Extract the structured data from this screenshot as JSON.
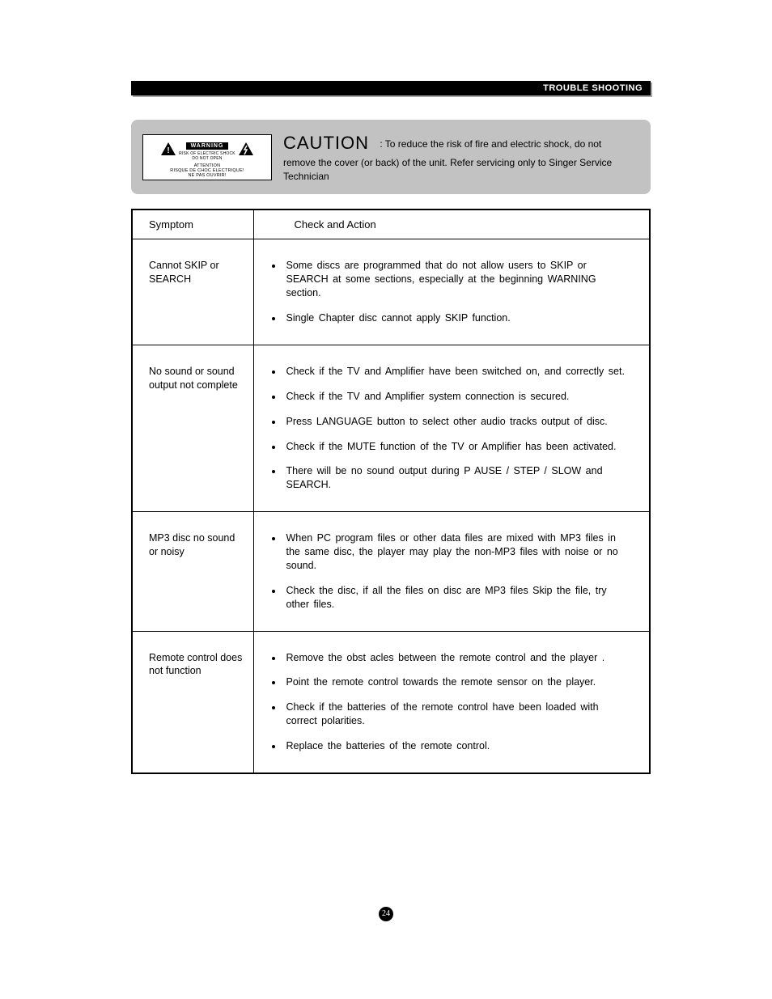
{
  "header": {
    "title": "TROUBLE SHOOTING"
  },
  "caution": {
    "title": "CAUTION",
    "body": ": To reduce the  risk of fire  and electric shock, do not  remove the cover   (or back) of  the unit. Refer servicing only to  Singer Service Technician",
    "warning_label": {
      "banner": "WARNING",
      "line1": "RISK OF ELECTRIC SHOCK",
      "line2": "DO NOT OPEN",
      "attention1": "ATTENTION",
      "attention2": "RISQUE DE CHOC ELECTRIQUE!",
      "attention3": "NE PAS OUVRIR!"
    }
  },
  "table": {
    "col_symptom": "Symptom",
    "col_action": "Check and Action",
    "rows": [
      {
        "symptom": "Cannot SKIP or SEARCH",
        "actions": [
          "Some discs are  programmed that   do not allow  users to SKIP or SEARCH at some sections, especially   at the beginning WARNING   section.",
          "Single Chapter disc   cannot apply SKIP function."
        ]
      },
      {
        "symptom": "No sound  or sound output not complete",
        "actions": [
          "Check if the  TV and Amplifier  have been switched   on, and correctly   set.",
          "Check if the  TV and Amplifier  system connection is    secured.",
          "Press LANGUAGE button  to select other  audio tracks output   of disc.",
          "Check if the  MUTE function of  the TV or  Amplifier has been   activated.",
          "There will be  no sound output  during P AUSE / STEP  / SLOW and  SEARCH."
        ]
      },
      {
        "symptom": "MP3 disc  no sound or noisy",
        "actions": [
          "When PC program   files or other  data files are  mixed with MP3 files in  the same disc,   the player may  play the non-MP3 files with  noise or  no sound.",
          "Check the  disc, if all the  files on disc are  MP3 files Skip the file, try  other files."
        ]
      },
      {
        "symptom": "Remote control does not  function",
        "actions": [
          "Remove the obst acles between the   remote control  and the player .",
          "Point the  remote control  towards the  remote sensor  on the player.",
          "Check if the  batteries of the   remote control have   been loaded with correct polarities.",
          "Replace the  batteries of  the remote  control."
        ]
      }
    ]
  },
  "page_number": "24",
  "colors": {
    "panel_bg": "#c2c2c2",
    "black": "#000000",
    "white": "#ffffff"
  }
}
